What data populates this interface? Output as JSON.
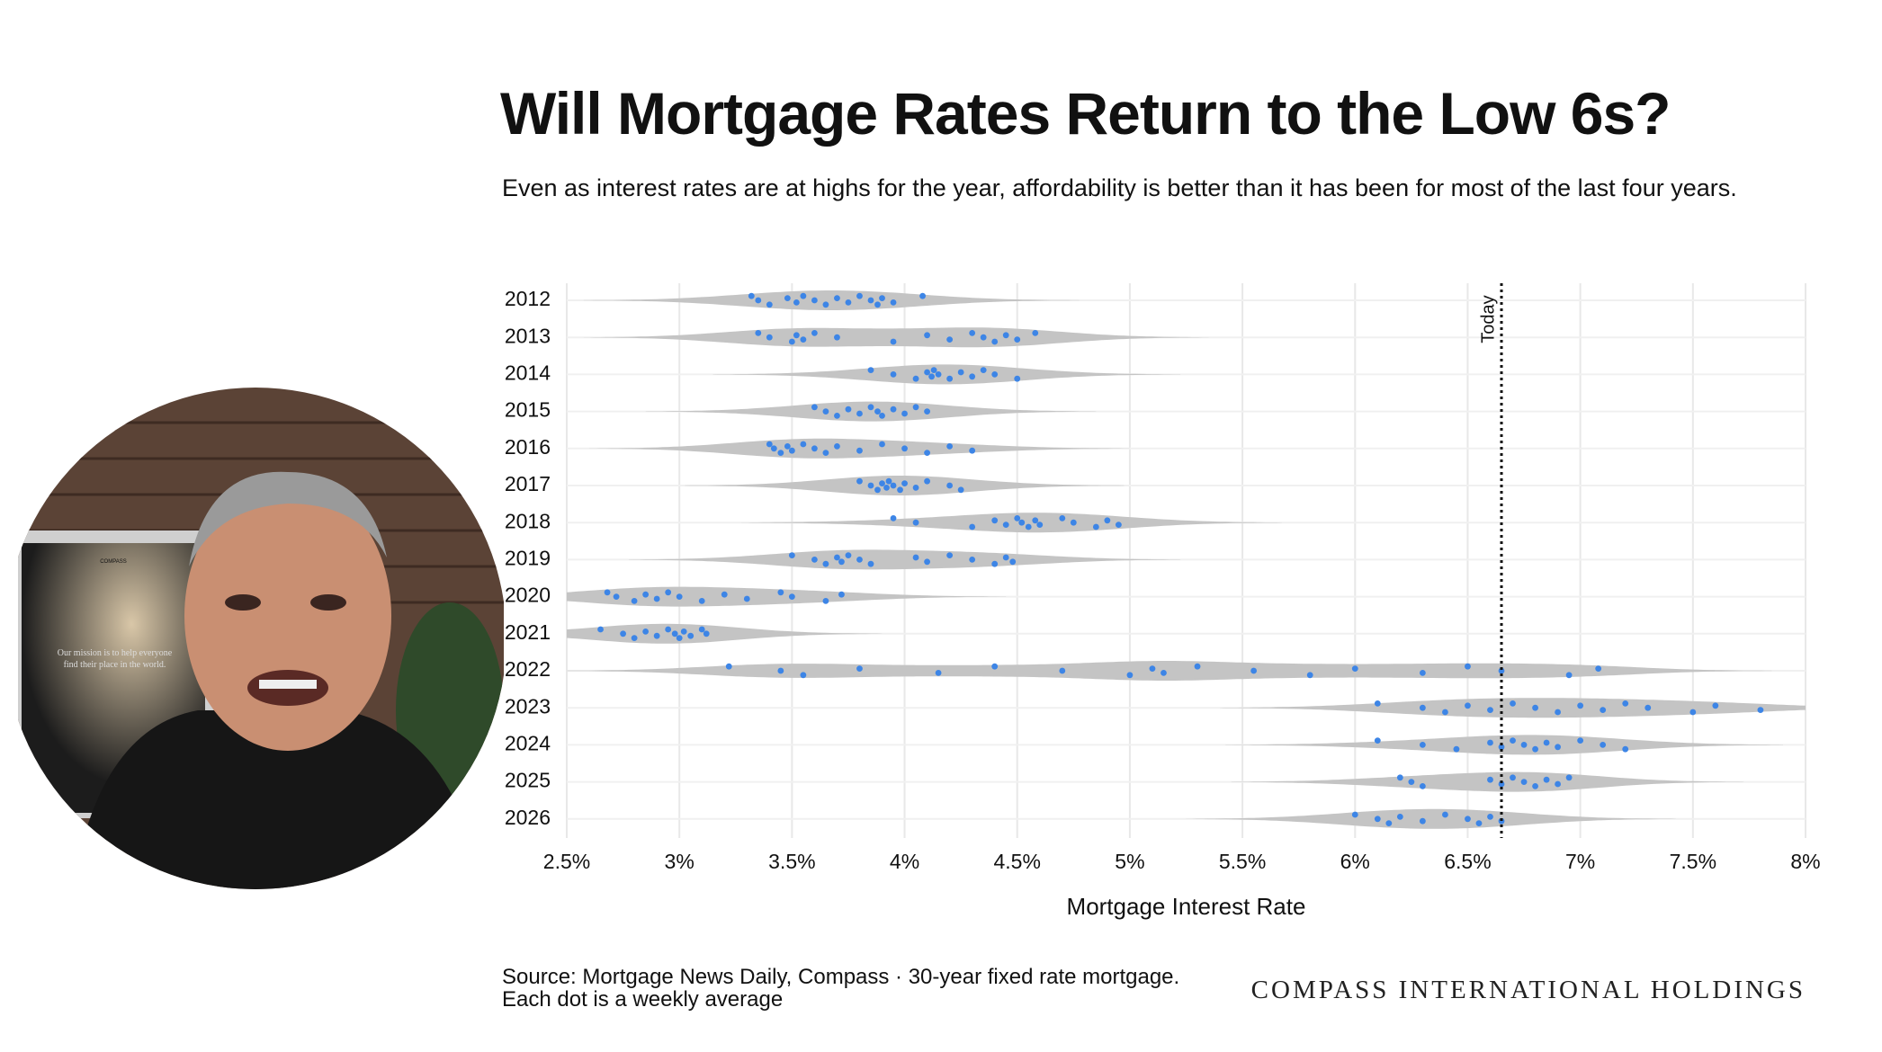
{
  "chart_data": {
    "type": "violin",
    "title": "Will Mortgage Rates Return to the Low 6s?",
    "subtitle": "Even as interest rates are at highs for the year, affordability is better than it has been for most of the last four years.",
    "x_label": "Mortgage Interest Rate",
    "source": "Source: Mortgage News Daily, Compass · 30-year fixed rate mortgage.",
    "note": "Each dot is a weekly average",
    "brand": "COMPASS INTERNATIONAL HOLDINGS",
    "categories": [
      "2012",
      "2013",
      "2014",
      "2015",
      "2016",
      "2017",
      "2018",
      "2019",
      "2020",
      "2021",
      "2022",
      "2023",
      "2024",
      "2025",
      "2026"
    ],
    "values": [
      [
        3.32,
        3.35,
        3.4,
        3.48,
        3.52,
        3.55,
        3.6,
        3.65,
        3.7,
        3.75,
        3.8,
        3.85,
        3.88,
        3.9,
        3.95,
        4.08
      ],
      [
        3.35,
        3.4,
        3.5,
        3.52,
        3.55,
        3.6,
        3.7,
        3.95,
        4.1,
        4.2,
        4.3,
        4.35,
        4.4,
        4.45,
        4.5,
        4.58
      ],
      [
        3.85,
        3.95,
        4.05,
        4.1,
        4.12,
        4.13,
        4.15,
        4.2,
        4.25,
        4.3,
        4.35,
        4.4,
        4.5
      ],
      [
        3.6,
        3.65,
        3.7,
        3.75,
        3.8,
        3.85,
        3.88,
        3.9,
        3.95,
        4.0,
        4.05,
        4.1
      ],
      [
        3.4,
        3.42,
        3.45,
        3.48,
        3.5,
        3.55,
        3.6,
        3.65,
        3.7,
        3.8,
        3.9,
        4.0,
        4.1,
        4.2,
        4.3
      ],
      [
        3.8,
        3.85,
        3.88,
        3.9,
        3.92,
        3.93,
        3.95,
        3.98,
        4.0,
        4.05,
        4.1,
        4.2,
        4.25
      ],
      [
        3.95,
        4.05,
        4.3,
        4.4,
        4.45,
        4.5,
        4.52,
        4.55,
        4.58,
        4.6,
        4.7,
        4.75,
        4.85,
        4.9,
        4.95
      ],
      [
        3.5,
        3.6,
        3.65,
        3.7,
        3.72,
        3.75,
        3.8,
        3.85,
        4.05,
        4.1,
        4.2,
        4.3,
        4.4,
        4.45,
        4.48
      ],
      [
        2.68,
        2.72,
        2.8,
        2.85,
        2.9,
        2.95,
        3.0,
        3.1,
        3.2,
        3.3,
        3.45,
        3.5,
        3.65,
        3.72
      ],
      [
        2.65,
        2.75,
        2.8,
        2.85,
        2.9,
        2.95,
        2.98,
        3.0,
        3.02,
        3.05,
        3.1,
        3.12
      ],
      [
        3.22,
        3.45,
        3.55,
        3.8,
        4.15,
        4.4,
        4.7,
        5.0,
        5.1,
        5.15,
        5.3,
        5.55,
        5.8,
        6.0,
        6.3,
        6.5,
        6.65,
        6.95,
        7.08
      ],
      [
        6.1,
        6.3,
        6.4,
        6.5,
        6.6,
        6.7,
        6.8,
        6.9,
        7.0,
        7.1,
        7.2,
        7.3,
        7.5,
        7.6,
        7.8
      ],
      [
        6.1,
        6.3,
        6.45,
        6.6,
        6.65,
        6.7,
        6.75,
        6.8,
        6.85,
        6.9,
        7.0,
        7.1,
        7.2
      ],
      [
        6.2,
        6.25,
        6.3,
        6.6,
        6.65,
        6.7,
        6.75,
        6.8,
        6.85,
        6.9,
        6.95
      ],
      [
        6.0,
        6.1,
        6.15,
        6.2,
        6.3,
        6.4,
        6.5,
        6.55,
        6.6,
        6.65
      ]
    ],
    "color": "#3d85e6",
    "violin_color": "#c4c4c4",
    "grid": true,
    "xlim": [
      2.5,
      8
    ],
    "xticks": [
      {
        "value": 2.5,
        "label": "2.5%"
      },
      {
        "value": 3,
        "label": "3%"
      },
      {
        "value": 3.5,
        "label": "3.5%"
      },
      {
        "value": 4,
        "label": "4%"
      },
      {
        "value": 4.5,
        "label": "4.5%"
      },
      {
        "value": 5,
        "label": "5%"
      },
      {
        "value": 5.5,
        "label": "5.5%"
      },
      {
        "value": 6,
        "label": "6%"
      },
      {
        "value": 6.5,
        "label": "6.5%"
      },
      {
        "value": 7,
        "label": "7%"
      },
      {
        "value": 7.5,
        "label": "7.5%"
      },
      {
        "value": 8,
        "label": "8%"
      }
    ],
    "annotations": [
      {
        "label": "Today",
        "x": 6.65
      }
    ]
  },
  "presenter_poster": {
    "brand": "COMPASS",
    "text": "Our mission is to help everyone find their place in the world."
  }
}
